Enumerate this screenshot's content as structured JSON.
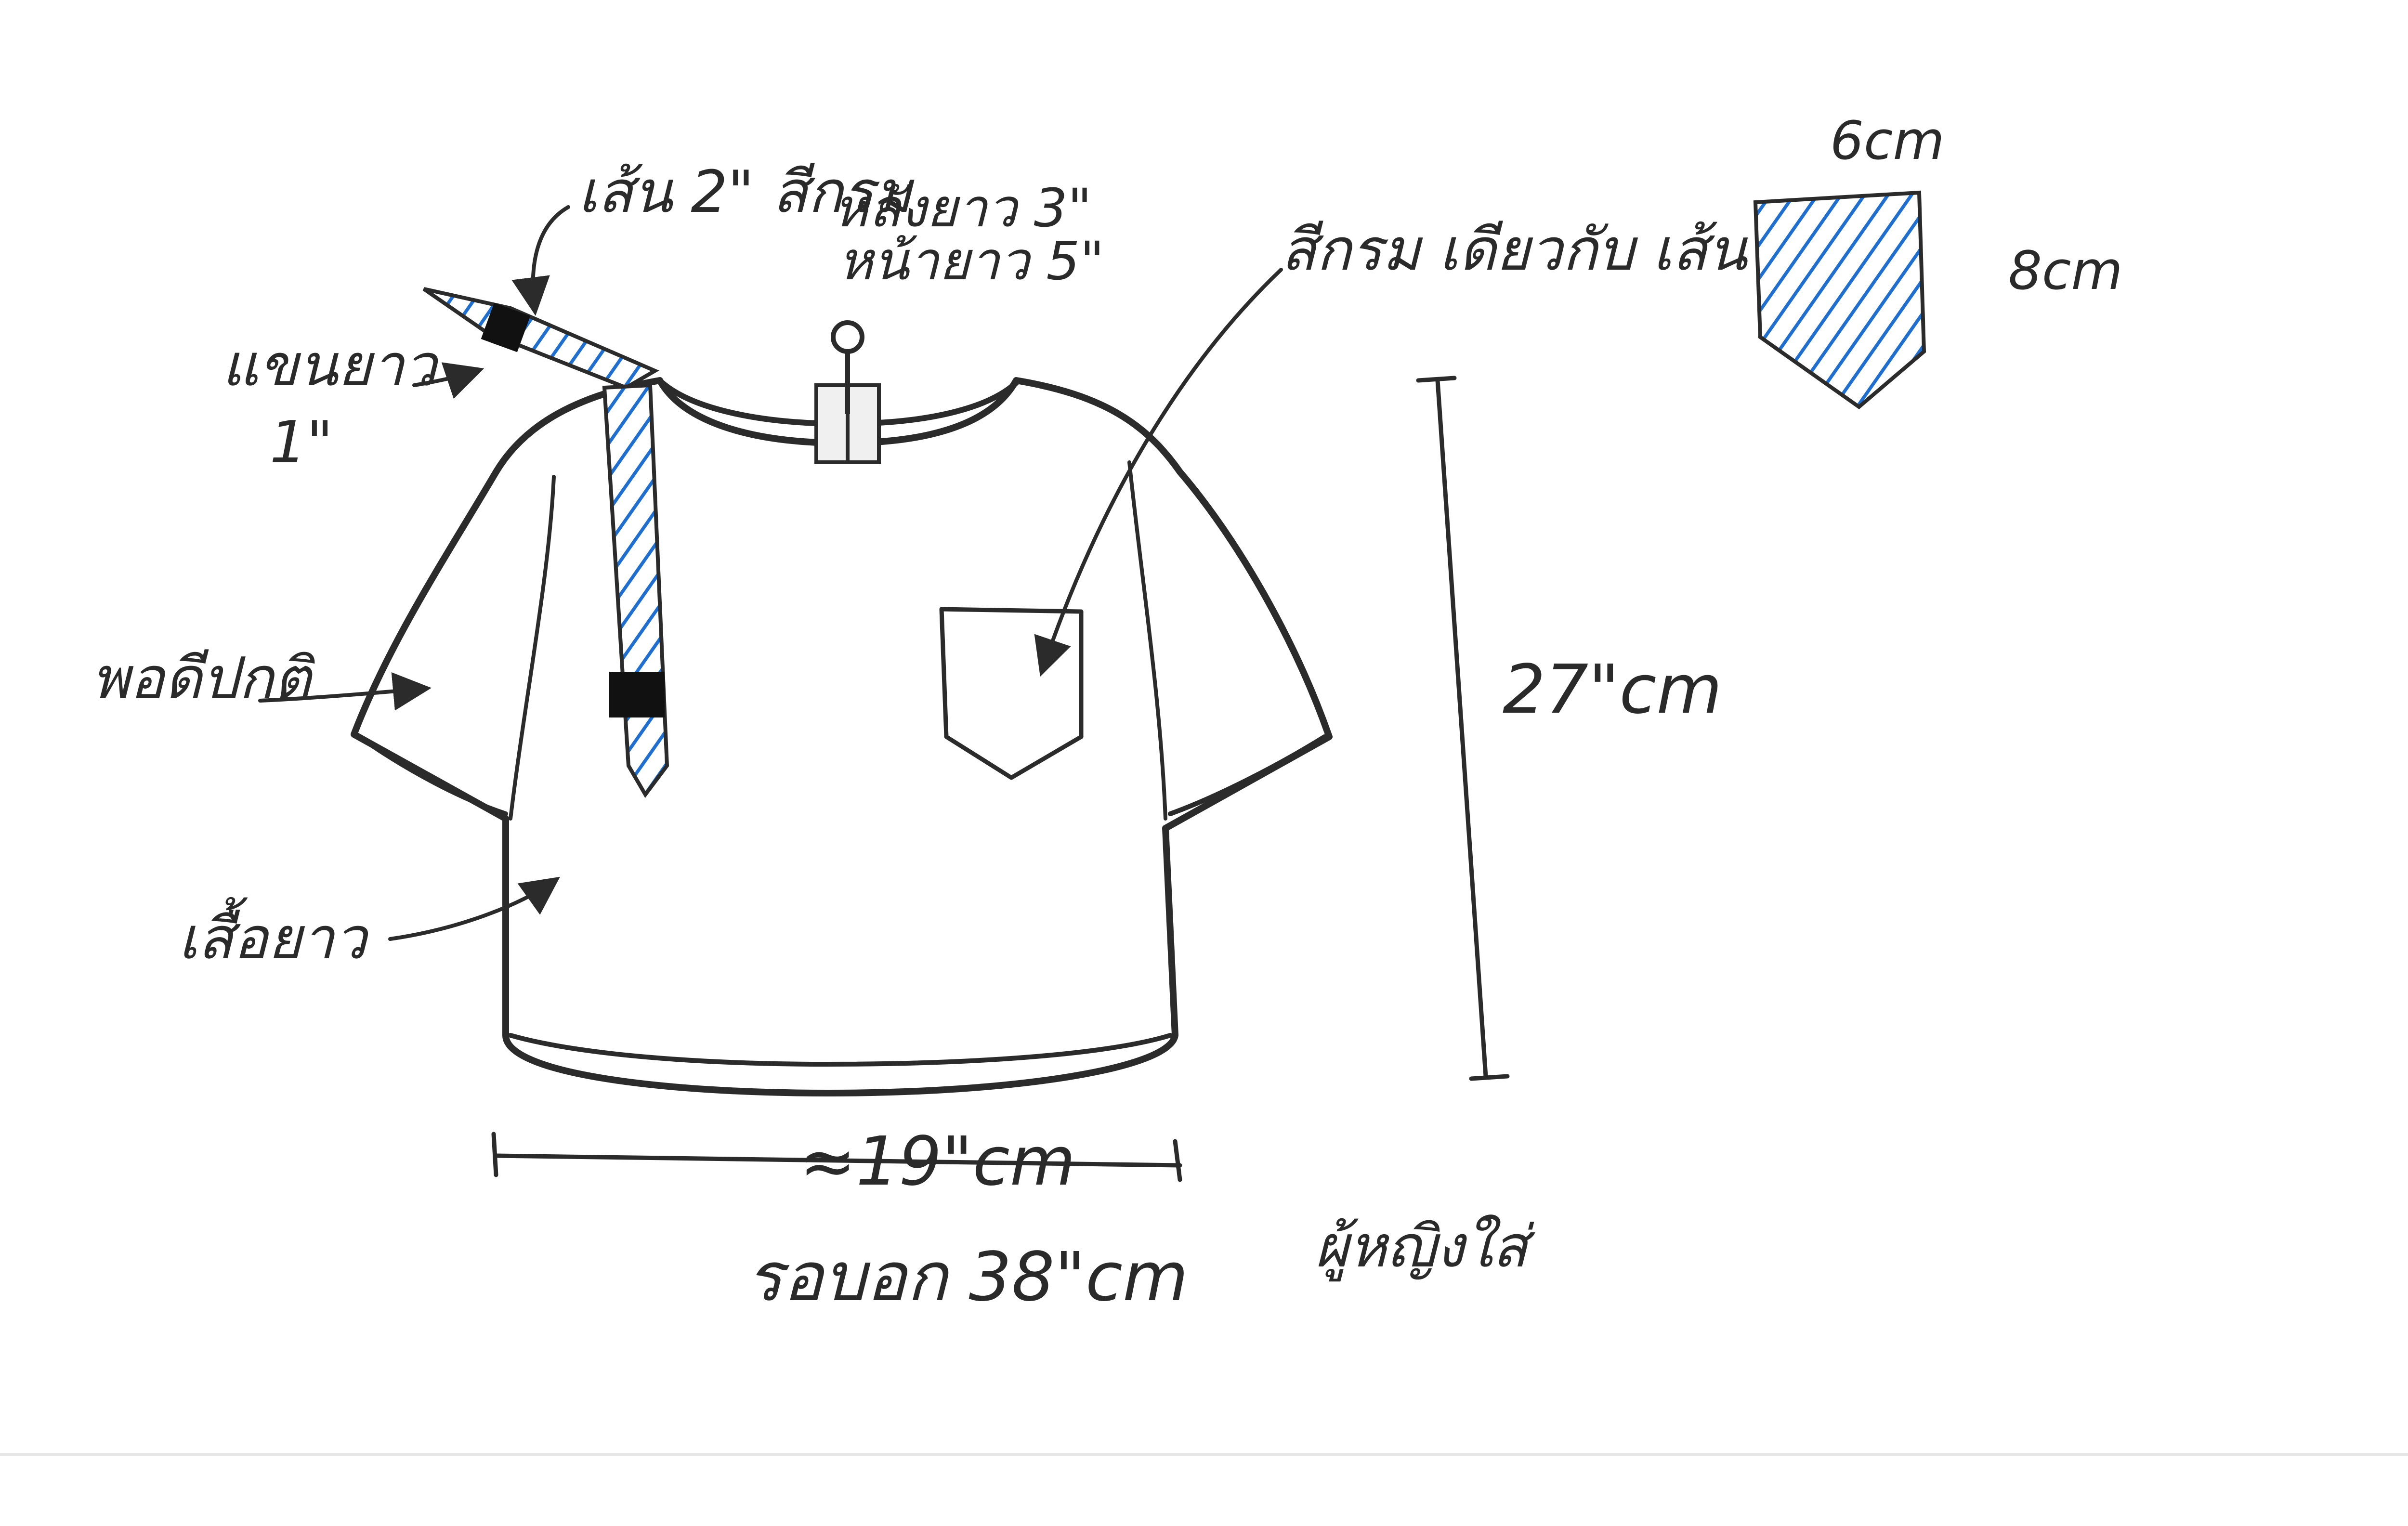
{
  "annotations": {
    "strap_title": "เส้น 2\" สีกรม",
    "strap_back_length": "หลังยาว 3\"",
    "strap_front_length": "หน้ายาว 5\"",
    "pocket_color_note": "สีกรม เดียวกับ เส้น",
    "sleeve_length_line1": "แขนยาว",
    "sleeve_length_line2": "1\"",
    "fabric_note": "พอดีปกติ",
    "shirt_length_note": "เสื้อยาว",
    "wearer_note": "ผู้หญิงใส่"
  },
  "dimensions": {
    "body_length": "27\"cm",
    "half_width": "≈19\"cm",
    "chest_round": "รอบอก 38\"cm"
  },
  "pocket_detail": {
    "width": "6cm",
    "height": "8cm",
    "fill_color": "#1f6fd1"
  },
  "colors": {
    "strap_blue": "#2a7ad8",
    "ink": "#2b2b2b"
  }
}
